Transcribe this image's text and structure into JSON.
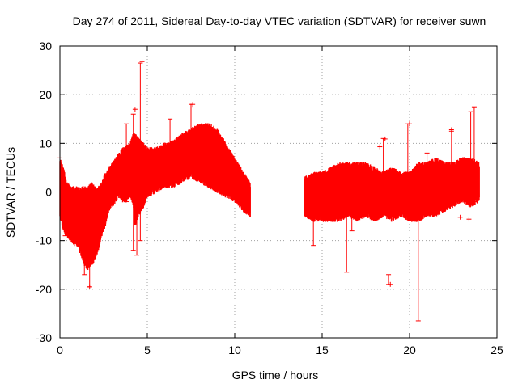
{
  "chart_data": {
    "type": "scatter",
    "title": "Day 274 of 2011, Sidereal Day-to-day VTEC variation (SDTVAR) for receiver suwn",
    "xlabel": "GPS time / hours",
    "ylabel": "SDTVAR / TECUs",
    "xlim": [
      0,
      25
    ],
    "ylim": [
      -30,
      30
    ],
    "xticks": [
      0,
      5,
      10,
      15,
      20,
      25
    ],
    "yticks": [
      -30,
      -20,
      -10,
      0,
      10,
      20,
      30
    ],
    "grid": true,
    "marker": "+",
    "series": [
      {
        "name": "SDTVAR",
        "color": "#ff0000",
        "envelope": [
          [
            0.0,
            -4,
            6
          ],
          [
            0.2,
            -7,
            4
          ],
          [
            0.4,
            -8,
            1
          ],
          [
            0.6,
            -9,
            0
          ],
          [
            0.8,
            -10,
            0
          ],
          [
            1.0,
            -10,
            0
          ],
          [
            1.2,
            -12,
            0
          ],
          [
            1.4,
            -14,
            0
          ],
          [
            1.6,
            -15,
            0
          ],
          [
            1.8,
            -14,
            1
          ],
          [
            2.0,
            -13,
            0
          ],
          [
            2.2,
            -11,
            0
          ],
          [
            2.4,
            -8,
            1
          ],
          [
            2.6,
            -6,
            3
          ],
          [
            2.8,
            -3,
            4
          ],
          [
            3.0,
            -2,
            5
          ],
          [
            3.2,
            -1,
            6
          ],
          [
            3.4,
            0,
            7
          ],
          [
            3.6,
            -1,
            8
          ],
          [
            3.8,
            -1,
            8.5
          ],
          [
            4.0,
            0,
            9
          ],
          [
            4.2,
            -2,
            11
          ],
          [
            4.3,
            -6,
            11
          ],
          [
            4.5,
            -4,
            10
          ],
          [
            4.8,
            -2,
            9
          ],
          [
            5.0,
            0,
            8
          ],
          [
            5.5,
            1,
            8
          ],
          [
            6.0,
            2,
            9
          ],
          [
            6.5,
            2,
            9.5
          ],
          [
            7.0,
            3,
            11
          ],
          [
            7.5,
            4,
            12
          ],
          [
            8.0,
            3,
            13
          ],
          [
            8.5,
            2,
            13
          ],
          [
            9.0,
            1,
            12
          ],
          [
            9.5,
            0,
            9
          ],
          [
            10.0,
            -1,
            6
          ],
          [
            10.5,
            -3,
            3
          ],
          [
            10.9,
            -4,
            1
          ],
          [
            14.0,
            -4,
            2
          ],
          [
            14.5,
            -5,
            3
          ],
          [
            15.0,
            -5,
            3
          ],
          [
            15.5,
            -5,
            4
          ],
          [
            16.0,
            -5,
            5
          ],
          [
            16.5,
            -4,
            5
          ],
          [
            17.0,
            -5,
            5
          ],
          [
            17.5,
            -4,
            5
          ],
          [
            18.0,
            -5,
            4
          ],
          [
            18.5,
            -4,
            3
          ],
          [
            19.0,
            -5,
            4
          ],
          [
            19.5,
            -4,
            3
          ],
          [
            20.0,
            -5,
            3
          ],
          [
            20.5,
            -5,
            5
          ],
          [
            21.0,
            -4,
            5
          ],
          [
            21.5,
            -4,
            6
          ],
          [
            22.0,
            -3,
            5
          ],
          [
            22.5,
            -2,
            5
          ],
          [
            23.0,
            -1,
            6
          ],
          [
            23.5,
            -2,
            6
          ],
          [
            24.0,
            -1,
            5
          ]
        ],
        "spikes": [
          [
            0.3,
            -9,
            1
          ],
          [
            1.4,
            -17,
            -8
          ],
          [
            1.7,
            -19.5,
            -10
          ],
          [
            3.8,
            -2,
            14
          ],
          [
            4.2,
            -12,
            16
          ],
          [
            4.4,
            -13,
            5
          ],
          [
            4.6,
            -10,
            26.5
          ],
          [
            6.3,
            3,
            15
          ],
          [
            7.5,
            4,
            18
          ],
          [
            14.5,
            -11,
            -3
          ],
          [
            16.4,
            -16.5,
            -4
          ],
          [
            16.7,
            -8,
            -3
          ],
          [
            18.5,
            2,
            11
          ],
          [
            18.8,
            -19,
            -17
          ],
          [
            19.9,
            2,
            14
          ],
          [
            20.5,
            -26.5,
            -5
          ],
          [
            21.0,
            3,
            8
          ],
          [
            22.4,
            3,
            12.5
          ],
          [
            23.5,
            4,
            16.5
          ],
          [
            23.7,
            -2,
            17.5
          ]
        ],
        "outliers": [
          [
            0.0,
            7
          ],
          [
            4.3,
            17
          ],
          [
            4.7,
            26.8
          ],
          [
            7.6,
            18
          ],
          [
            18.9,
            -19
          ],
          [
            20.0,
            14
          ],
          [
            22.4,
            12.8
          ],
          [
            22.9,
            -5.2
          ],
          [
            23.4,
            -5.6
          ],
          [
            18.3,
            9.3
          ],
          [
            18.6,
            10.9
          ],
          [
            1.7,
            -19.5
          ]
        ]
      }
    ]
  }
}
